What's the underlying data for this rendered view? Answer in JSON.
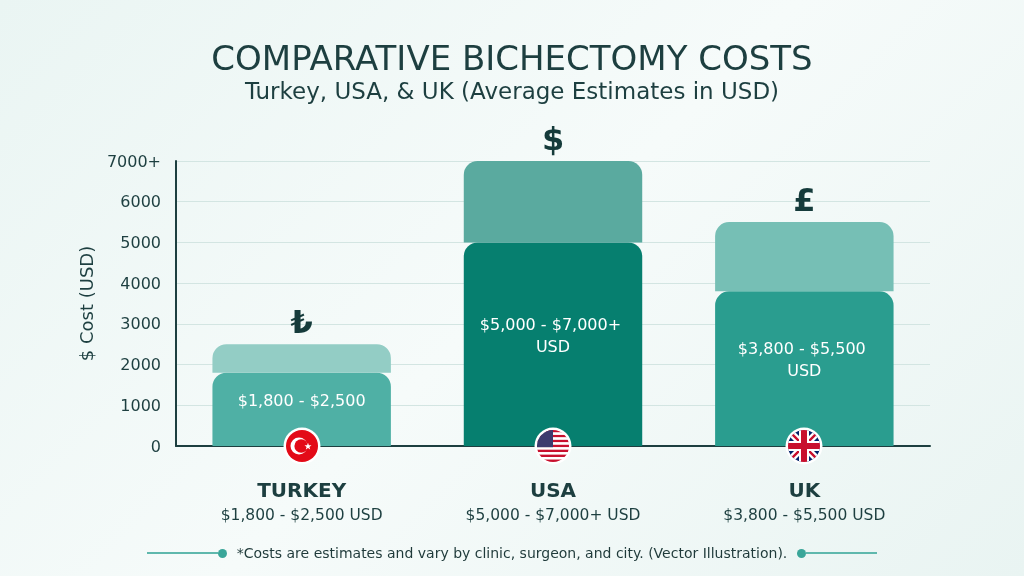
{
  "chart_data": {
    "type": "bar",
    "title": "COMPARATIVE BICHECTOMY COSTS",
    "subtitle": "Turkey, USA, & UK (Average Estimates in USD)",
    "ylabel": "$ Cost (USD)",
    "categories": [
      "TURKEY\n$1,800 - $2,500 USD",
      "USA\n$5,000 - $7,000+ USD",
      "UK\n$3,800 - $5,500 USD"
    ],
    "stacked": true,
    "series": [
      {
        "colors": [
          "#4fb0a5",
          "#067f6f",
          "#2a9d8f"
        ],
        "values": [
          1800,
          5000,
          3800
        ],
        "value_labels": [
          "$1,800 - $2,500",
          "$5,000 - $7,000+ USD",
          "$3,800 - $5,500 USD"
        ]
      },
      {
        "colors": [
          "#93cdc5",
          "#5aaa9f",
          "#76bfb5"
        ],
        "values": [
          700,
          2000,
          1700
        ]
      }
    ],
    "ylim": [
      0,
      7000
    ],
    "yticks": [
      0,
      1000,
      2000,
      3000,
      4000,
      5000,
      6000,
      {
        "value": 7000,
        "label": "7000+"
      }
    ],
    "grid": "y",
    "annotations": [
      {
        "text": "₺",
        "x": "TURKEY\n$1,800 - $2,500 USD",
        "y": 2500
      },
      {
        "text": "$",
        "x": "USA\n$5,000 - $7,000+ USD",
        "y": 7000
      },
      {
        "text": "£",
        "x": "UK\n$3,800 - $5,500 USD",
        "y": 5500
      },
      "*Costs are estimates and vary by clinic, surgeon, and city. (Vector Illustration)."
    ]
  }
}
